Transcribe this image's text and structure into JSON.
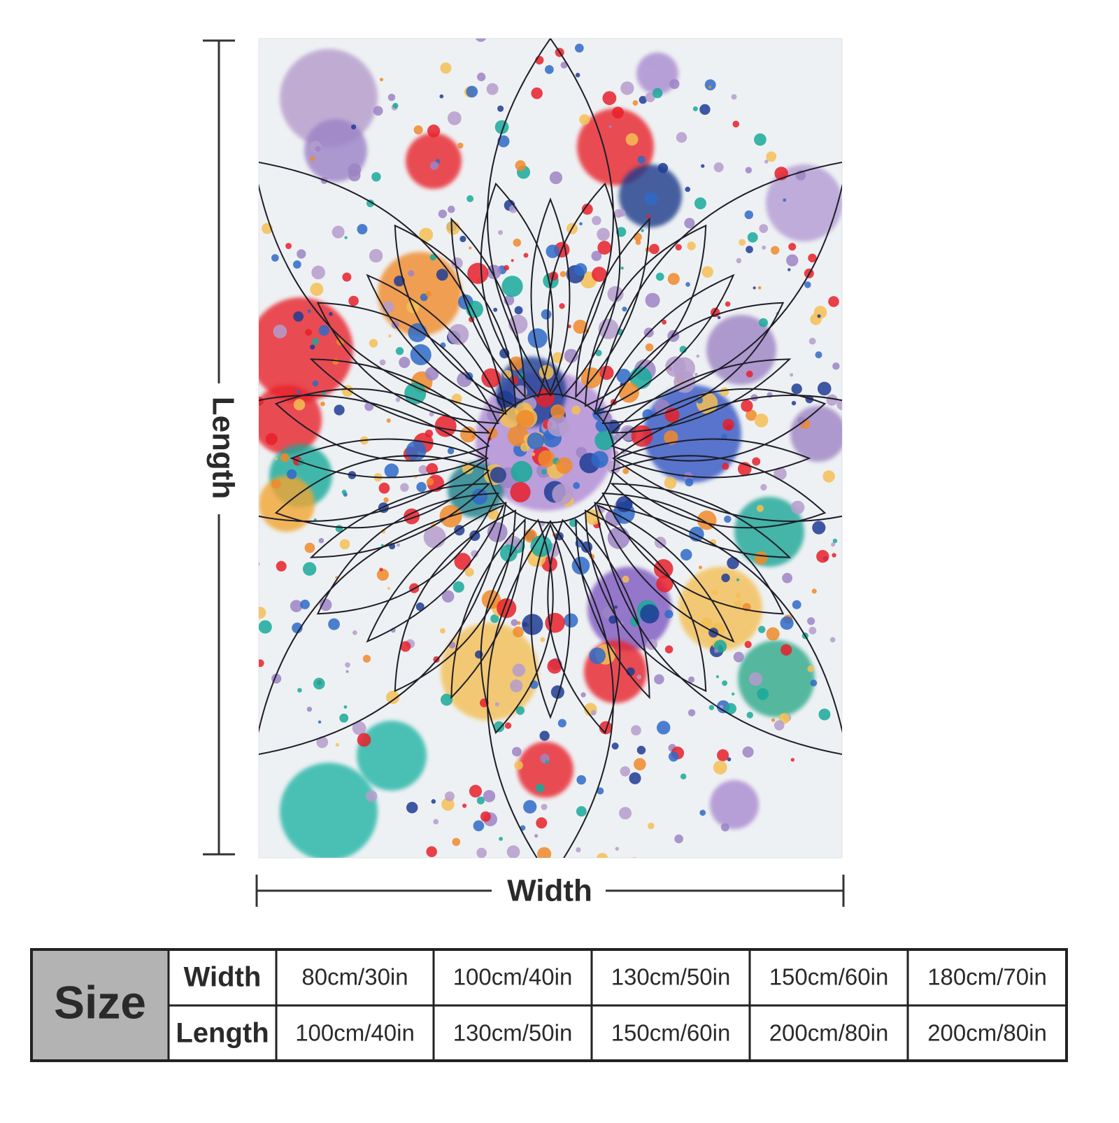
{
  "labels": {
    "length": "Length",
    "width": "Width"
  },
  "table": {
    "header": "Size",
    "rows": [
      [
        "Width",
        "80cm/30in",
        "100cm/40in",
        "130cm/50in",
        "150cm/60in",
        "180cm/70in"
      ],
      [
        "Length",
        "100cm/40in",
        "130cm/50in",
        "150cm/60in",
        "200cm/80in",
        "200cm/80in"
      ]
    ]
  }
}
